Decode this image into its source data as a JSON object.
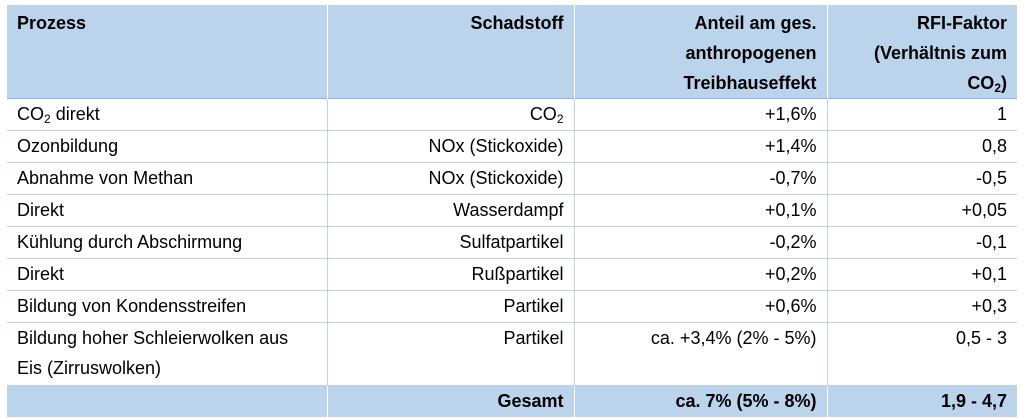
{
  "header": {
    "col1": "Prozess",
    "col2": "Schadstoff",
    "col3": "Anteil am ges. anthropogenen Treibhauseffekt",
    "col4_main": "RFI-Faktor (Verhältnis zum CO",
    "col4_sub": "2",
    "col4_end": ")"
  },
  "rows": [
    {
      "prozess": "CO",
      "prozess_sub": "2",
      "prozess_rest": " direkt",
      "schadstoff": "CO",
      "schadstoff_sub": "2",
      "anteil": "+1,6%",
      "rfi": "1"
    },
    {
      "prozess": "Ozonbildung",
      "schadstoff": "NOx (Stickoxide)",
      "anteil": "+1,4%",
      "rfi": "0,8"
    },
    {
      "prozess": "Abnahme von Methan",
      "schadstoff": "NOx (Stickoxide)",
      "anteil": "-0,7%",
      "rfi": "-0,5"
    },
    {
      "prozess": "Direkt",
      "schadstoff": "Wasserdampf",
      "anteil": "+0,1%",
      "rfi": "+0,05"
    },
    {
      "prozess": "Kühlung durch Abschirmung",
      "schadstoff": "Sulfatpartikel",
      "anteil": "-0,2%",
      "rfi": "-0,1"
    },
    {
      "prozess": "Direkt",
      "schadstoff": "Rußpartikel",
      "anteil": "+0,2%",
      "rfi": "+0,1"
    },
    {
      "prozess": "Bildung von Kondensstreifen",
      "schadstoff": "Partikel",
      "anteil": "+0,6%",
      "rfi": "+0,3"
    },
    {
      "prozess": "Bildung hoher Schleierwolken aus Eis (Zirruswolken)",
      "schadstoff": "Partikel",
      "anteil": "ca. +3,4% (2% - 5%)",
      "rfi": "0,5 - 3"
    }
  ],
  "footer": {
    "label": "Gesamt",
    "anteil": "ca. 7% (5% - 8%)",
    "rfi": "1,9 - 4,7"
  }
}
